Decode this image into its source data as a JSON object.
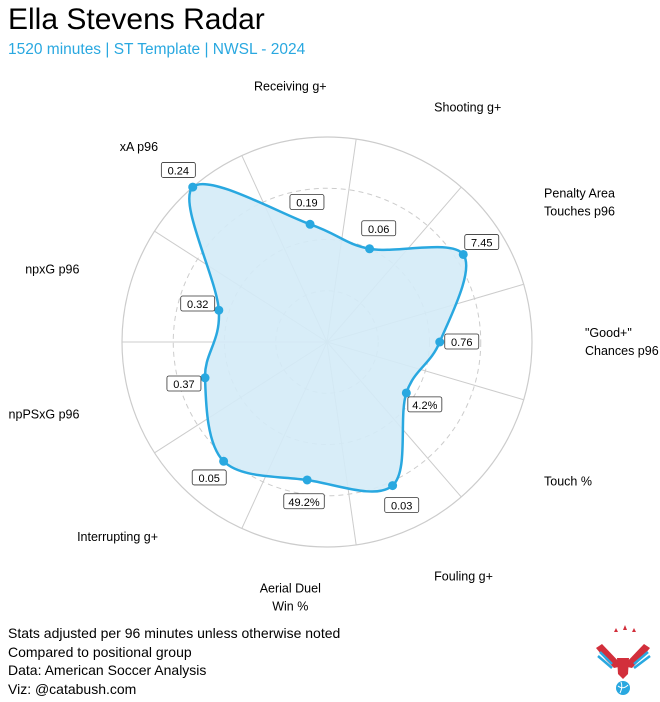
{
  "header": {
    "title": "Ella Stevens Radar",
    "subtitle": "1520 minutes | ST Template | NWSL - 2024"
  },
  "notes": [
    "Stats adjusted per 96 minutes unless otherwise noted",
    "Compared to positional group",
    "Data: American Soccer Analysis",
    "Viz: @catabush.com"
  ],
  "colors": {
    "accent": "#29a8e0",
    "fill": "#d4ebf7",
    "grid": "#cccccc"
  },
  "chart_data": {
    "type": "radar",
    "title": "Ella Stevens Radar",
    "range": [
      0,
      1
    ],
    "gridlines": [
      0.25,
      0.5,
      0.75
    ],
    "metrics": [
      {
        "label": [
          "\"Good+\"",
          "Chances p96"
        ],
        "value_label": "0.76",
        "percentile": 0.55
      },
      {
        "label": [
          "Penalty Area",
          "Touches p96"
        ],
        "value_label": "7.45",
        "percentile": 0.79
      },
      {
        "label": [
          "Shooting g+"
        ],
        "value_label": "0.06",
        "percentile": 0.5
      },
      {
        "label": [
          "Receiving g+"
        ],
        "value_label": "0.19",
        "percentile": 0.58
      },
      {
        "label": [
          "xA p96"
        ],
        "value_label": "0.24",
        "percentile": 1.0
      },
      {
        "label": [
          "npxG p96"
        ],
        "value_label": "0.32",
        "percentile": 0.55
      },
      {
        "label": [
          "npPSxG p96"
        ],
        "value_label": "0.37",
        "percentile": 0.62
      },
      {
        "label": [
          "Interrupting g+"
        ],
        "value_label": "0.05",
        "percentile": 0.77
      },
      {
        "label": [
          "Aerial Duel",
          "Win %"
        ],
        "value_label": "49.2%",
        "percentile": 0.68
      },
      {
        "label": [
          "Fouling g+"
        ],
        "value_label": "0.03",
        "percentile": 0.77
      },
      {
        "label": [
          "Touch %"
        ],
        "value_label": "4.2%",
        "percentile": 0.46
      }
    ]
  }
}
